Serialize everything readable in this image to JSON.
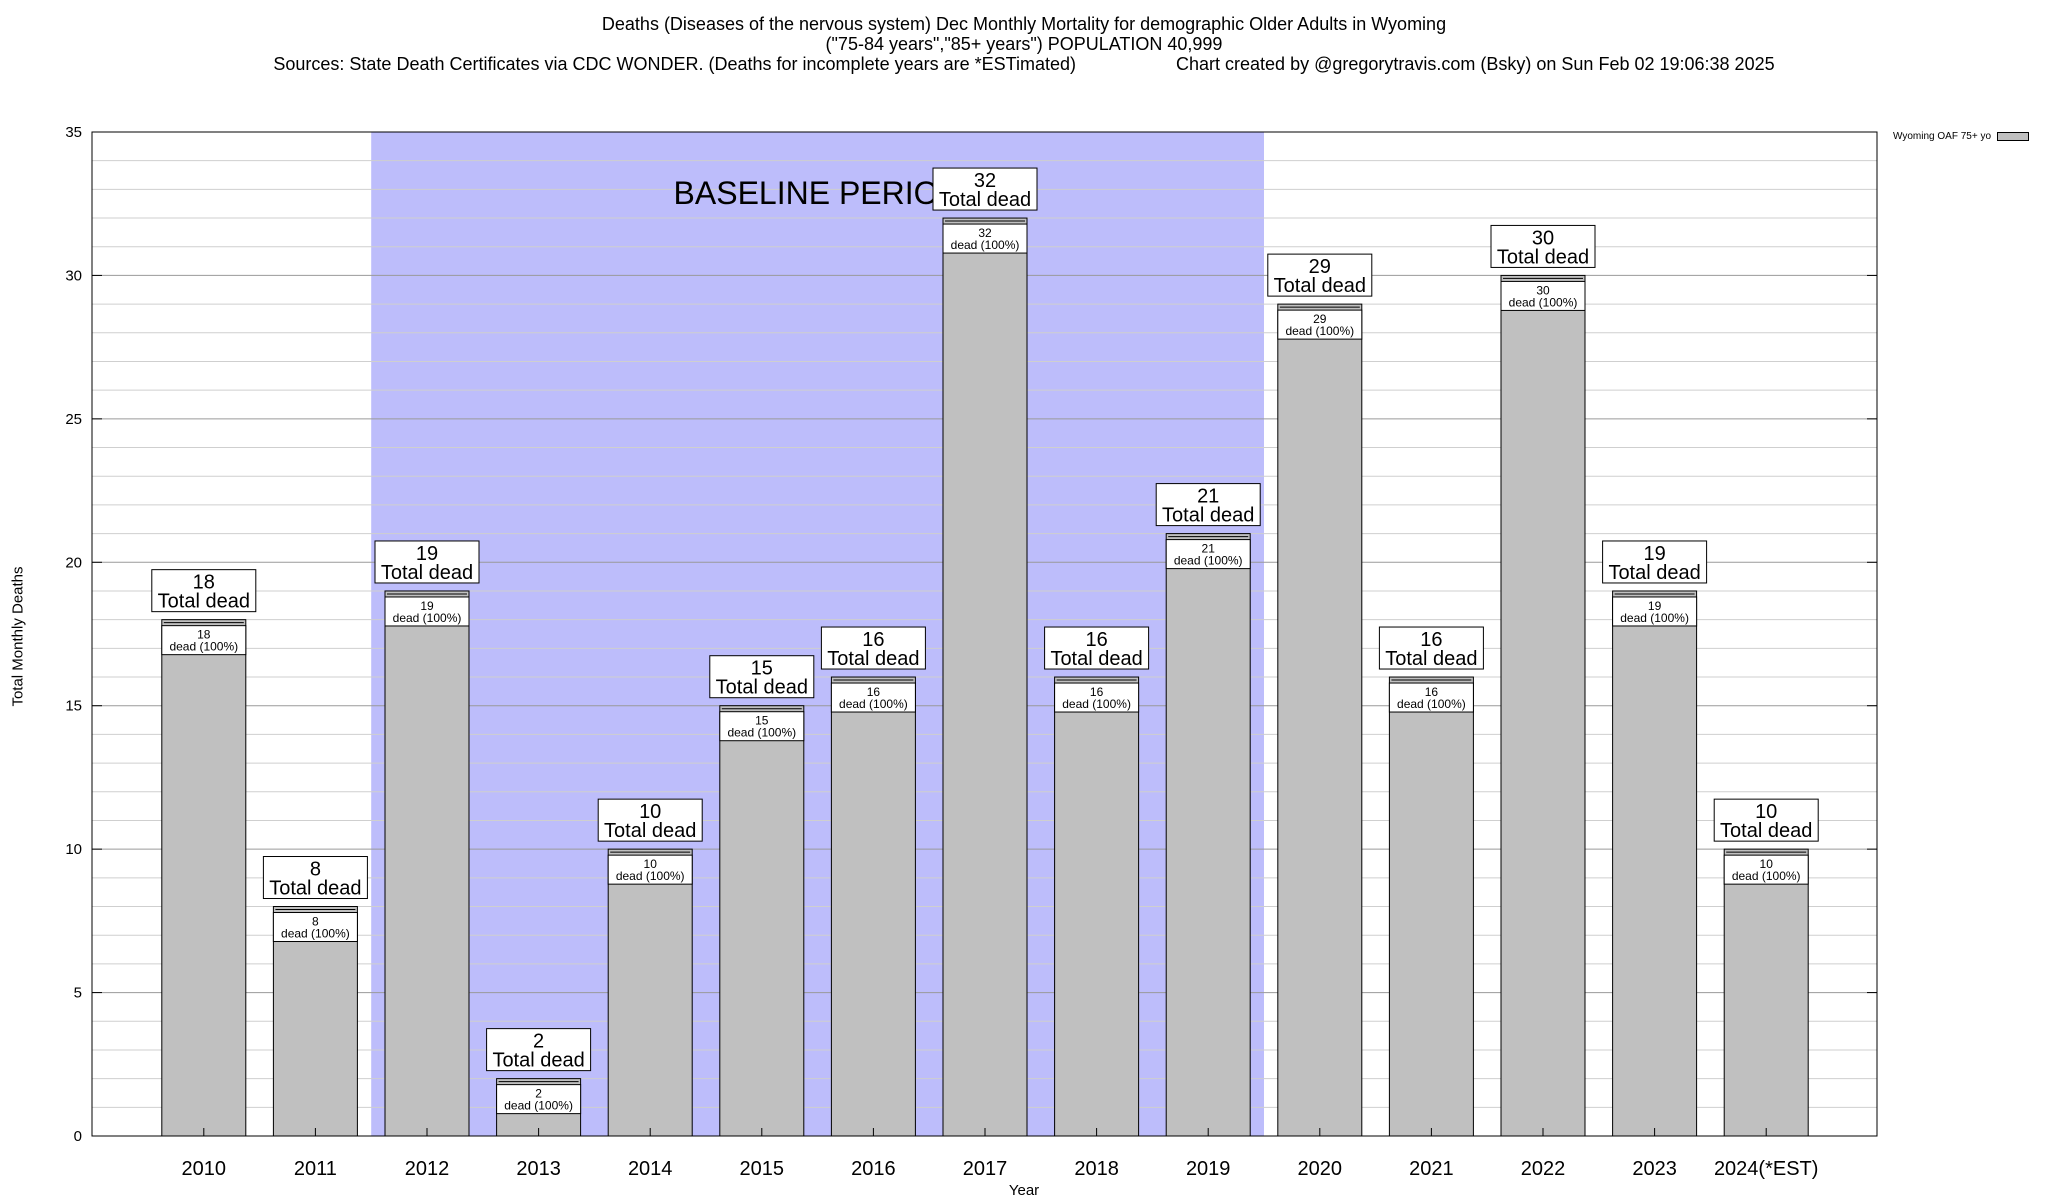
{
  "chart_data": {
    "type": "bar",
    "title": "Deaths (Diseases of the nervous system) Dec Monthly Mortality for demographic Older Adults in Wyoming",
    "subtitle": "(\"75-84 years\",\"85+ years\") POPULATION 40,999",
    "sources": "Sources: State Death Certificates via CDC WONDER. (Deaths for incomplete years are *ESTimated)",
    "credit": "Chart created by @gregorytravis.com (Bsky) on Sun Feb 02 19:06:38 2025",
    "xlabel": "Year",
    "ylabel": "Total Monthly Deaths",
    "ylim": [
      0,
      35
    ],
    "yticks": [
      0,
      5,
      10,
      15,
      20,
      25,
      30,
      35
    ],
    "categories": [
      "2010",
      "2011",
      "2012",
      "2013",
      "2014",
      "2015",
      "2016",
      "2017",
      "2018",
      "2019",
      "2020",
      "2021",
      "2022",
      "2023",
      "2024(*EST)"
    ],
    "series": [
      {
        "name": "Wyoming OAF 75+ yo",
        "values": [
          18,
          8,
          19,
          2,
          10,
          15,
          16,
          32,
          16,
          21,
          29,
          16,
          30,
          19,
          10
        ]
      }
    ],
    "total_label": "Total dead",
    "inner_label": "dead (100%)",
    "baseline": {
      "label": "BASELINE PERIOD",
      "from": "2012",
      "to": "2019",
      "color": "#bdbdfb"
    },
    "bar_color": "#c0c0c0",
    "grid": true,
    "legend_placement": "top-right"
  }
}
